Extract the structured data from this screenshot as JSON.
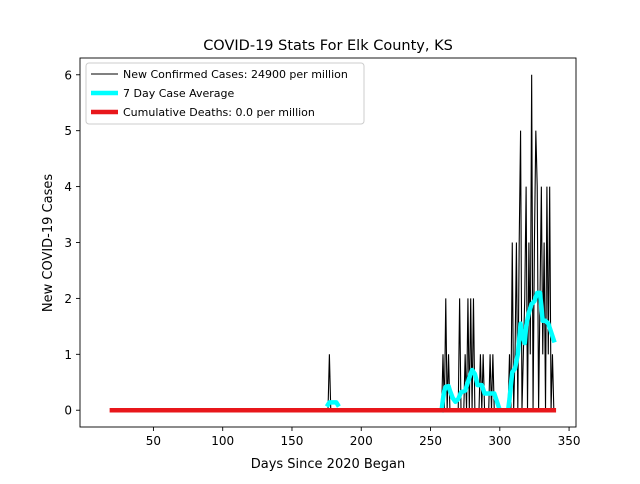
{
  "chart_data": {
    "type": "line",
    "title": "COVID-19 Stats For Elk County, KS",
    "xlabel": "Days Since 2020 Began",
    "ylabel": "New COVID-19 Cases",
    "xlim": [
      -3,
      355
    ],
    "ylim": [
      -0.3,
      6.3
    ],
    "xticks": [
      50,
      100,
      150,
      200,
      250,
      300,
      350
    ],
    "yticks": [
      0,
      1,
      2,
      3,
      4,
      5,
      6
    ],
    "grid": false,
    "legend_position": "top-left",
    "series": [
      {
        "name": "New Confirmed Cases: 24900 per million",
        "color": "#000000",
        "style": "thin-line",
        "points": [
          [
            20,
            0
          ],
          [
            176,
            0
          ],
          [
            177,
            1
          ],
          [
            178,
            0
          ],
          [
            258,
            0
          ],
          [
            259,
            1
          ],
          [
            260,
            0
          ],
          [
            261,
            2
          ],
          [
            262,
            0
          ],
          [
            263,
            1
          ],
          [
            264,
            0
          ],
          [
            270,
            0
          ],
          [
            271,
            2
          ],
          [
            272,
            0
          ],
          [
            274,
            0
          ],
          [
            275,
            1
          ],
          [
            276,
            0
          ],
          [
            277,
            2
          ],
          [
            278,
            0
          ],
          [
            279,
            2
          ],
          [
            280,
            0
          ],
          [
            281,
            2
          ],
          [
            282,
            0
          ],
          [
            285,
            0
          ],
          [
            286,
            1
          ],
          [
            287,
            0
          ],
          [
            288,
            1
          ],
          [
            289,
            0
          ],
          [
            292,
            0
          ],
          [
            293,
            1
          ],
          [
            294,
            0
          ],
          [
            295,
            1
          ],
          [
            296,
            0
          ],
          [
            306,
            0
          ],
          [
            307,
            1
          ],
          [
            308,
            0
          ],
          [
            309,
            3
          ],
          [
            310,
            0
          ],
          [
            311,
            1
          ],
          [
            312,
            3
          ],
          [
            313,
            0
          ],
          [
            314,
            3
          ],
          [
            315,
            5
          ],
          [
            316,
            0
          ],
          [
            317,
            1
          ],
          [
            318,
            2
          ],
          [
            319,
            4
          ],
          [
            320,
            0
          ],
          [
            321,
            3
          ],
          [
            322,
            1
          ],
          [
            323,
            6
          ],
          [
            324,
            0
          ],
          [
            325,
            3
          ],
          [
            326,
            5
          ],
          [
            327,
            4
          ],
          [
            328,
            0
          ],
          [
            329,
            2
          ],
          [
            330,
            4
          ],
          [
            331,
            1
          ],
          [
            332,
            3
          ],
          [
            333,
            0
          ],
          [
            334,
            4
          ],
          [
            335,
            1
          ],
          [
            336,
            4
          ],
          [
            337,
            0
          ],
          [
            338,
            1
          ],
          [
            339,
            0
          ]
        ]
      },
      {
        "name": "7 Day Case Average",
        "color": "#00ffff",
        "style": "thick-line",
        "segments": [
          [
            [
              176,
              0.1
            ],
            [
              177,
              0.14
            ],
            [
              182,
              0.14
            ],
            [
              183,
              0.1
            ]
          ],
          [
            [
              258,
              0
            ],
            [
              259,
              0.2
            ],
            [
              260,
              0.35
            ],
            [
              261,
              0.42
            ],
            [
              263,
              0.43
            ],
            [
              264,
              0.35
            ],
            [
              266,
              0.22
            ],
            [
              268,
              0.15
            ],
            [
              270,
              0.2
            ],
            [
              272,
              0.32
            ],
            [
              275,
              0.35
            ],
            [
              278,
              0.58
            ],
            [
              280,
              0.72
            ],
            [
              282,
              0.65
            ],
            [
              284,
              0.45
            ],
            [
              287,
              0.45
            ],
            [
              289,
              0.3
            ],
            [
              293,
              0.3
            ],
            [
              296,
              0.3
            ],
            [
              298,
              0.15
            ],
            [
              300,
              0
            ],
            [
              306,
              0
            ],
            [
              307,
              0.2
            ],
            [
              308,
              0.45
            ],
            [
              309,
              0.68
            ],
            [
              311,
              0.75
            ],
            [
              313,
              1.0
            ],
            [
              315,
              1.55
            ],
            [
              316,
              1.35
            ],
            [
              318,
              1.2
            ],
            [
              319,
              1.5
            ],
            [
              321,
              1.75
            ],
            [
              323,
              1.9
            ],
            [
              325,
              1.95
            ],
            [
              327,
              2.1
            ],
            [
              329,
              2.1
            ],
            [
              330,
              1.85
            ],
            [
              331,
              1.6
            ],
            [
              333,
              1.6
            ],
            [
              335,
              1.55
            ],
            [
              337,
              1.4
            ],
            [
              339,
              1.25
            ]
          ]
        ]
      },
      {
        "name": "Cumulative Deaths: 0.0 per million",
        "color": "#e8171b",
        "style": "thick-line",
        "points": [
          [
            20,
            0
          ],
          [
            339,
            0
          ]
        ]
      }
    ]
  }
}
